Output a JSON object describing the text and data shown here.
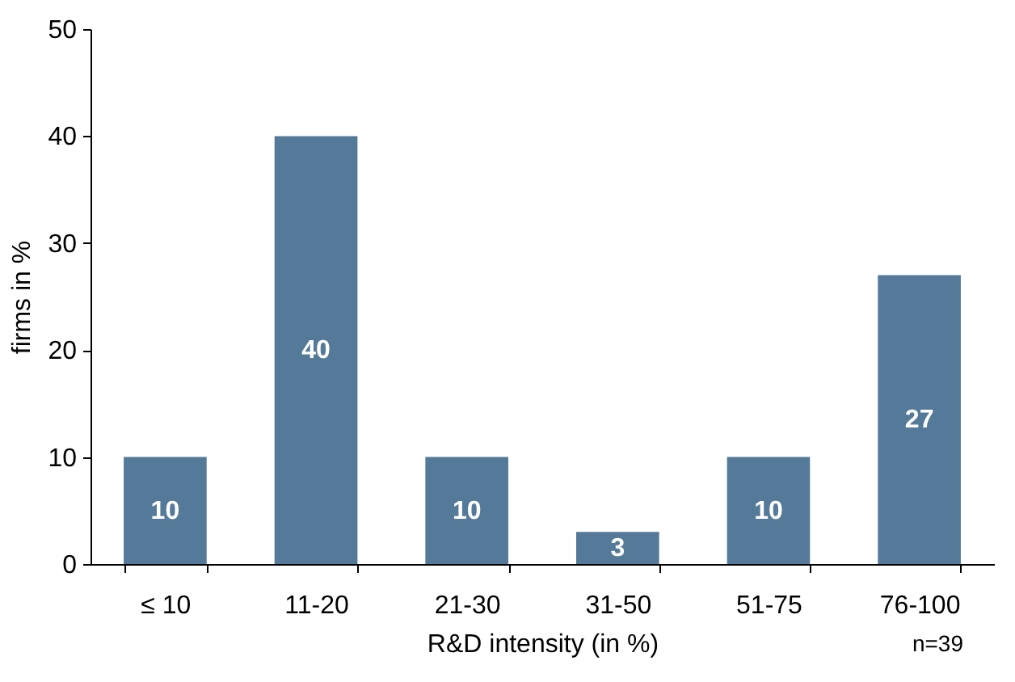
{
  "chart_data": {
    "type": "bar",
    "xlabel": "R&D intensity (in %)",
    "ylabel": "firms in %",
    "categories": [
      "≤ 10",
      "11-20",
      "21-30",
      "31-50",
      "51-75",
      "76-100"
    ],
    "values": [
      10,
      40,
      10,
      3,
      10,
      27
    ],
    "color": "#557a99",
    "ylim": [
      0,
      50
    ],
    "yticks": [
      0,
      10,
      20,
      30,
      40,
      50
    ],
    "grid": false,
    "data_labels": true,
    "annotations": [
      "n=39"
    ]
  }
}
